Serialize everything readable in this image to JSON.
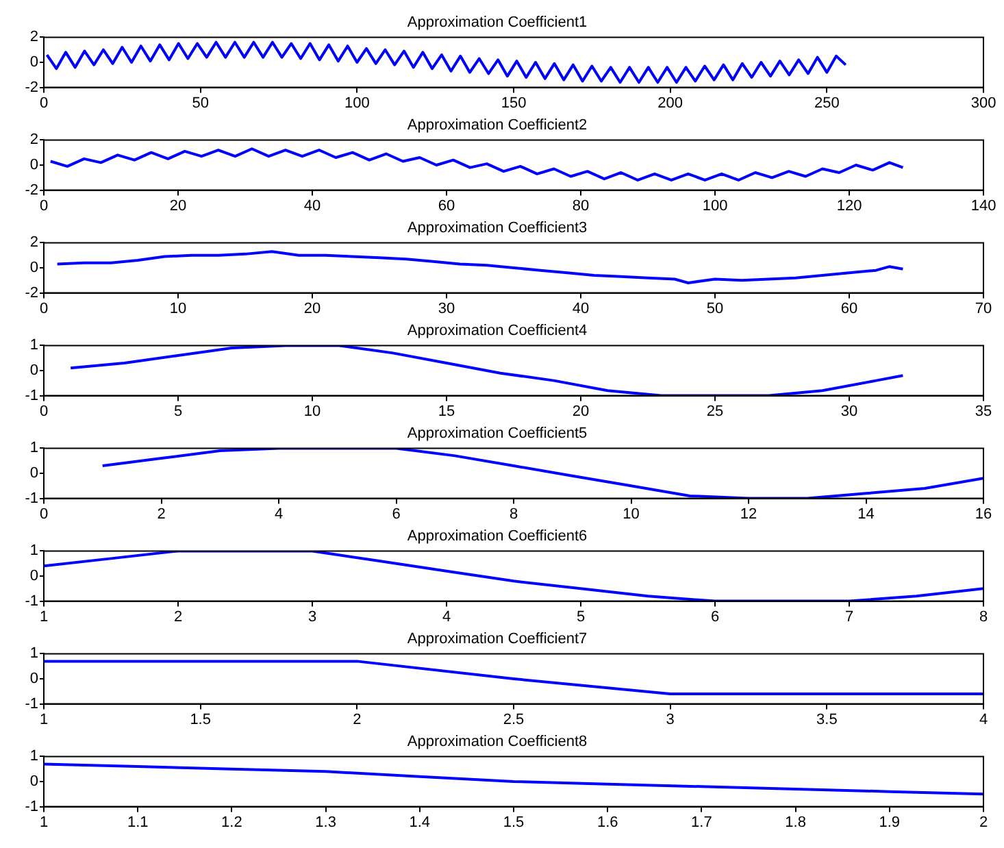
{
  "chart_data": [
    {
      "type": "line",
      "title": "Approximation Coefficient1",
      "x": [
        1,
        4,
        7,
        10,
        13,
        16,
        19,
        22,
        25,
        28,
        31,
        34,
        37,
        40,
        43,
        46,
        49,
        52,
        55,
        58,
        61,
        64,
        67,
        70,
        73,
        76,
        79,
        82,
        85,
        88,
        91,
        94,
        97,
        100,
        103,
        106,
        109,
        112,
        115,
        118,
        121,
        124,
        127,
        130,
        133,
        136,
        139,
        142,
        145,
        148,
        151,
        154,
        157,
        160,
        163,
        166,
        169,
        172,
        175,
        178,
        181,
        184,
        187,
        190,
        193,
        196,
        199,
        202,
        205,
        208,
        211,
        214,
        217,
        220,
        223,
        226,
        229,
        232,
        235,
        238,
        241,
        244,
        247,
        250,
        253,
        256
      ],
      "series": [
        {
          "color": "#0000ff",
          "values": [
            0.6,
            -0.5,
            0.8,
            -0.4,
            0.9,
            -0.2,
            1.0,
            -0.1,
            1.2,
            0.0,
            1.3,
            0.1,
            1.4,
            0.2,
            1.5,
            0.3,
            1.5,
            0.4,
            1.6,
            0.4,
            1.6,
            0.4,
            1.6,
            0.4,
            1.6,
            0.4,
            1.5,
            0.3,
            1.5,
            0.2,
            1.4,
            0.1,
            1.3,
            0.0,
            1.1,
            -0.1,
            1.0,
            -0.2,
            0.9,
            -0.4,
            0.8,
            -0.5,
            0.6,
            -0.7,
            0.5,
            -0.8,
            0.3,
            -0.9,
            0.2,
            -1.1,
            0.1,
            -1.2,
            0.0,
            -1.3,
            -0.1,
            -1.4,
            -0.2,
            -1.5,
            -0.3,
            -1.5,
            -0.4,
            -1.6,
            -0.4,
            -1.6,
            -0.4,
            -1.6,
            -0.4,
            -1.6,
            -0.4,
            -1.5,
            -0.3,
            -1.4,
            -0.2,
            -1.4,
            -0.1,
            -1.2,
            0.0,
            -1.1,
            0.1,
            -1.0,
            0.2,
            -0.9,
            0.4,
            -0.8,
            0.5,
            -0.2
          ]
        }
      ],
      "xlim": [
        0,
        300
      ],
      "xticks": [
        0,
        50,
        100,
        150,
        200,
        250,
        300
      ],
      "ylim": [
        -2,
        2
      ],
      "yticks": [
        -2,
        0,
        2
      ]
    },
    {
      "type": "line",
      "title": "Approximation Coefficient2",
      "x": [
        1,
        3.5,
        6,
        8.5,
        11,
        13.5,
        16,
        18.5,
        21,
        23.5,
        26,
        28.5,
        31,
        33.5,
        36,
        38.5,
        41,
        43.5,
        46,
        48.5,
        51,
        53.5,
        56,
        58.5,
        61,
        63.5,
        66,
        68.5,
        71,
        73.5,
        76,
        78.5,
        81,
        83.5,
        86,
        88.5,
        91,
        93.5,
        96,
        98.5,
        101,
        103.5,
        106,
        108.5,
        111,
        113.5,
        116,
        118.5,
        121,
        123.5,
        126,
        128
      ],
      "series": [
        {
          "color": "#0000ff",
          "values": [
            0.3,
            -0.1,
            0.5,
            0.2,
            0.8,
            0.4,
            1.0,
            0.5,
            1.1,
            0.7,
            1.2,
            0.7,
            1.3,
            0.7,
            1.2,
            0.7,
            1.2,
            0.6,
            1.0,
            0.4,
            0.9,
            0.3,
            0.6,
            0.0,
            0.4,
            -0.2,
            0.1,
            -0.5,
            -0.1,
            -0.7,
            -0.3,
            -0.9,
            -0.5,
            -1.1,
            -0.6,
            -1.2,
            -0.7,
            -1.2,
            -0.7,
            -1.2,
            -0.7,
            -1.2,
            -0.6,
            -1.0,
            -0.5,
            -0.9,
            -0.3,
            -0.6,
            0.0,
            -0.4,
            0.2,
            -0.2
          ]
        }
      ],
      "xlim": [
        0,
        140
      ],
      "xticks": [
        0,
        20,
        40,
        60,
        80,
        100,
        120,
        140
      ],
      "ylim": [
        -2,
        2
      ],
      "yticks": [
        -2,
        0,
        2
      ]
    },
    {
      "type": "line",
      "title": "Approximation Coefficient3",
      "x": [
        1,
        3,
        5,
        7,
        9,
        11,
        13,
        15,
        17,
        19,
        21,
        23,
        25,
        27,
        29,
        31,
        33,
        35,
        37,
        39,
        41,
        43,
        45,
        47,
        48,
        50,
        52,
        54,
        56,
        58,
        60,
        62,
        63,
        64
      ],
      "series": [
        {
          "color": "#0000ff",
          "values": [
            0.3,
            0.4,
            0.4,
            0.6,
            0.9,
            1.0,
            1.0,
            1.1,
            1.3,
            1.0,
            1.0,
            0.9,
            0.8,
            0.7,
            0.5,
            0.3,
            0.2,
            0.0,
            -0.2,
            -0.4,
            -0.6,
            -0.7,
            -0.8,
            -0.9,
            -1.2,
            -0.9,
            -1.0,
            -0.9,
            -0.8,
            -0.6,
            -0.4,
            -0.2,
            0.1,
            -0.1
          ]
        }
      ],
      "xlim": [
        0,
        70
      ],
      "xticks": [
        0,
        10,
        20,
        30,
        40,
        50,
        60,
        70
      ],
      "ylim": [
        -2,
        2
      ],
      "yticks": [
        -2,
        0,
        2
      ]
    },
    {
      "type": "line",
      "title": "Approximation Coefficient4",
      "x": [
        1,
        3,
        5,
        7,
        9,
        11,
        13,
        15,
        17,
        19,
        21,
        23,
        25,
        27,
        29,
        31,
        32
      ],
      "series": [
        {
          "color": "#0000ff",
          "values": [
            0.1,
            0.3,
            0.6,
            0.9,
            1.0,
            1.0,
            0.7,
            0.3,
            -0.1,
            -0.4,
            -0.8,
            -1.0,
            -1.0,
            -1.0,
            -0.8,
            -0.4,
            -0.2
          ]
        }
      ],
      "xlim": [
        0,
        35
      ],
      "xticks": [
        0,
        5,
        10,
        15,
        20,
        25,
        30,
        35
      ],
      "ylim": [
        -1,
        1
      ],
      "yticks": [
        -1,
        0,
        1
      ]
    },
    {
      "type": "line",
      "title": "Approximation Coefficient5",
      "x": [
        1,
        2,
        3,
        4,
        5,
        6,
        7,
        8,
        9,
        10,
        11,
        12,
        13,
        14,
        15,
        16
      ],
      "series": [
        {
          "color": "#0000ff",
          "values": [
            0.3,
            0.6,
            0.9,
            1.0,
            1.0,
            1.0,
            0.7,
            0.3,
            -0.1,
            -0.5,
            -0.9,
            -1.0,
            -1.0,
            -0.8,
            -0.6,
            -0.2
          ]
        }
      ],
      "xlim": [
        0,
        16
      ],
      "xticks": [
        0,
        2,
        4,
        6,
        8,
        10,
        12,
        14,
        16
      ],
      "ylim": [
        -1,
        1
      ],
      "yticks": [
        -1,
        0,
        1
      ]
    },
    {
      "type": "line",
      "title": "Approximation Coefficient6",
      "x": [
        1,
        1.5,
        2,
        2.5,
        3,
        3.5,
        4,
        4.5,
        5,
        5.5,
        6,
        6.5,
        7,
        7.5,
        8
      ],
      "series": [
        {
          "color": "#0000ff",
          "values": [
            0.4,
            0.7,
            1.0,
            1.0,
            1.0,
            0.6,
            0.2,
            -0.2,
            -0.5,
            -0.8,
            -1.0,
            -1.0,
            -1.0,
            -0.8,
            -0.5
          ]
        }
      ],
      "xlim": [
        1,
        8
      ],
      "xticks": [
        1,
        2,
        3,
        4,
        5,
        6,
        7,
        8
      ],
      "ylim": [
        -1,
        1
      ],
      "yticks": [
        -1,
        0,
        1
      ]
    },
    {
      "type": "line",
      "title": "Approximation Coefficient7",
      "x": [
        1,
        2,
        2.5,
        3,
        4
      ],
      "series": [
        {
          "color": "#0000ff",
          "values": [
            0.7,
            0.7,
            0.0,
            -0.6,
            -0.6
          ]
        }
      ],
      "xlim": [
        1,
        4
      ],
      "xticks": [
        1,
        1.5,
        2,
        2.5,
        3,
        3.5,
        4
      ],
      "ylim": [
        -1,
        1
      ],
      "yticks": [
        -1,
        0,
        1
      ]
    },
    {
      "type": "line",
      "title": "Approximation Coefficient8",
      "x": [
        1,
        1.1,
        1.2,
        1.3,
        1.4,
        1.5,
        1.6,
        1.7,
        1.8,
        1.9,
        2
      ],
      "series": [
        {
          "color": "#0000ff",
          "values": [
            0.7,
            0.6,
            0.5,
            0.4,
            0.2,
            0.0,
            -0.1,
            -0.2,
            -0.3,
            -0.4,
            -0.5
          ]
        }
      ],
      "xlim": [
        1,
        2
      ],
      "xticks": [
        1,
        1.1,
        1.2,
        1.3,
        1.4,
        1.5,
        1.6,
        1.7,
        1.8,
        1.9,
        2
      ],
      "ylim": [
        -1,
        1
      ],
      "yticks": [
        -1,
        0,
        1
      ]
    }
  ]
}
